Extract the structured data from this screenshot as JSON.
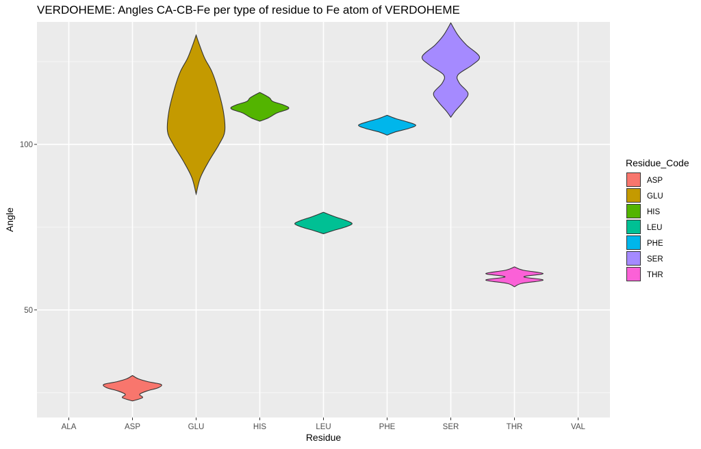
{
  "chart_data": {
    "type": "violin",
    "title": "VERDOHEME: Angles CA-CB-Fe per type of residue to Fe atom of VERDOHEME",
    "xlabel": "Residue",
    "ylabel": "Angle",
    "categories": [
      "ALA",
      "ASP",
      "GLU",
      "HIS",
      "LEU",
      "PHE",
      "SER",
      "THR",
      "VAL"
    ],
    "ylim": [
      17.5,
      137
    ],
    "y_ticks": [
      50,
      100
    ],
    "grid": true,
    "legend": {
      "title": "Residue_Code",
      "placement": "right",
      "entries": [
        "ASP",
        "GLU",
        "HIS",
        "LEU",
        "PHE",
        "SER",
        "THR"
      ]
    },
    "colors": {
      "ASP": "#F8766D",
      "GLU": "#C49A00",
      "HIS": "#53B400",
      "LEU": "#00C094",
      "PHE": "#00B6EB",
      "SER": "#A58AFF",
      "THR": "#FB61D7"
    },
    "violins": [
      {
        "residue": "ASP",
        "min": 22.5,
        "max": 30.2,
        "profile": [
          [
            22.5,
            0
          ],
          [
            23.5,
            0.35
          ],
          [
            24.5,
            0.25
          ],
          [
            25.5,
            0.5
          ],
          [
            26.5,
            0.9
          ],
          [
            27.5,
            1.0
          ],
          [
            28.3,
            0.55
          ],
          [
            29.2,
            0.2
          ],
          [
            30.2,
            0
          ]
        ]
      },
      {
        "residue": "GLU",
        "min": 85,
        "max": 133,
        "profile": [
          [
            85,
            0
          ],
          [
            90,
            0.15
          ],
          [
            95,
            0.45
          ],
          [
            100,
            0.8
          ],
          [
            104,
            1.0
          ],
          [
            110,
            0.95
          ],
          [
            117,
            0.75
          ],
          [
            122,
            0.55
          ],
          [
            126,
            0.3
          ],
          [
            130,
            0.12
          ],
          [
            133,
            0
          ]
        ]
      },
      {
        "residue": "HIS",
        "min": 107,
        "max": 115.7,
        "profile": [
          [
            107,
            0
          ],
          [
            108,
            0.3
          ],
          [
            109.5,
            0.6
          ],
          [
            110.5,
            0.95
          ],
          [
            111.2,
            1.0
          ],
          [
            112,
            0.8
          ],
          [
            113,
            0.45
          ],
          [
            114,
            0.35
          ],
          [
            114.8,
            0.2
          ],
          [
            115.7,
            0
          ]
        ]
      },
      {
        "residue": "LEU",
        "min": 73,
        "max": 79.5,
        "profile": [
          [
            73,
            0
          ],
          [
            74,
            0.35
          ],
          [
            75,
            0.75
          ],
          [
            76,
            1.0
          ],
          [
            77,
            0.8
          ],
          [
            78,
            0.45
          ],
          [
            78.8,
            0.2
          ],
          [
            79.5,
            0
          ]
        ]
      },
      {
        "residue": "PHE",
        "min": 102.8,
        "max": 108.8,
        "profile": [
          [
            102.8,
            0
          ],
          [
            103.8,
            0.3
          ],
          [
            104.8,
            0.75
          ],
          [
            105.8,
            1.0
          ],
          [
            106.8,
            0.7
          ],
          [
            107.8,
            0.3
          ],
          [
            108.8,
            0
          ]
        ]
      },
      {
        "residue": "SER",
        "min": 108.2,
        "max": 136.7,
        "profile": [
          [
            108.2,
            0
          ],
          [
            110,
            0.15
          ],
          [
            113,
            0.45
          ],
          [
            115.5,
            0.6
          ],
          [
            118.5,
            0.3
          ],
          [
            121,
            0.25
          ],
          [
            124,
            0.75
          ],
          [
            126.5,
            1.0
          ],
          [
            130,
            0.55
          ],
          [
            133,
            0.25
          ],
          [
            136.7,
            0
          ]
        ]
      },
      {
        "residue": "THR",
        "min": 57,
        "max": 63,
        "profile": [
          [
            57,
            0
          ],
          [
            58,
            0.25
          ],
          [
            59,
            1.0
          ],
          [
            59.8,
            0.4
          ],
          [
            60.2,
            0.4
          ],
          [
            61,
            1.0
          ],
          [
            62,
            0.3
          ],
          [
            63,
            0
          ]
        ]
      }
    ]
  }
}
